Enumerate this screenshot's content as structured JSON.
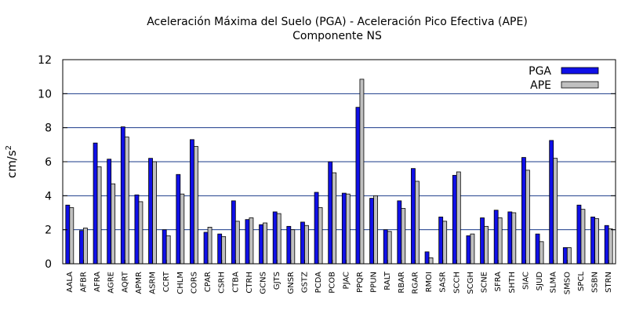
{
  "colors": {
    "pga": "#1010e8",
    "ape": "#c0c0c0",
    "grid": "#1a3a8a"
  },
  "chart_data": {
    "type": "bar",
    "title": "Aceleración Máxima del Suelo (PGA) -   Aceleración Pico Efectiva (APE)",
    "subtitle": "Componente NS",
    "ylabel": "cm/s",
    "ylabel_sup": "2",
    "xlabel": "",
    "ylim": [
      0,
      12
    ],
    "yticks": [
      0,
      2,
      4,
      6,
      8,
      10,
      12
    ],
    "grid": true,
    "legend_position": "top-right",
    "categories": [
      "AALA",
      "AFBR",
      "AFRA",
      "AGRE",
      "AQRT",
      "APMR",
      "ASRM",
      "CCRT",
      "CHLM",
      "CORS",
      "CPAR",
      "CSRH",
      "CTBA",
      "CTRH",
      "GCNS",
      "GJTS",
      "GNSR",
      "GSTZ",
      "PCDA",
      "PCOB",
      "PJAC",
      "PPQR",
      "PPUN",
      "RALT",
      "RBAR",
      "RGAR",
      "RMOI",
      "SASR",
      "SCCH",
      "SCGH",
      "SCNE",
      "SFRA",
      "SHTH",
      "SIAC",
      "SJUD",
      "SLMA",
      "SMSO",
      "SPCL",
      "SSBN",
      "STRN"
    ],
    "series": [
      {
        "name": "PGA",
        "values": [
          3.45,
          1.95,
          7.1,
          6.15,
          8.05,
          4.05,
          6.2,
          2.0,
          5.25,
          7.3,
          1.85,
          1.75,
          3.7,
          2.6,
          2.3,
          3.05,
          2.2,
          2.45,
          4.2,
          6.0,
          4.15,
          9.2,
          3.85,
          2.0,
          3.7,
          5.6,
          0.7,
          2.75,
          5.2,
          1.65,
          2.7,
          3.15,
          3.05,
          6.25,
          1.75,
          7.25,
          0.95,
          3.45,
          2.75,
          2.25
        ]
      },
      {
        "name": "APE",
        "values": [
          3.3,
          2.1,
          5.7,
          4.7,
          7.45,
          3.65,
          6.0,
          1.65,
          4.1,
          6.9,
          2.15,
          1.6,
          2.5,
          2.7,
          2.4,
          2.95,
          2.0,
          2.25,
          3.3,
          5.35,
          4.1,
          10.85,
          4.0,
          1.9,
          3.25,
          4.85,
          0.35,
          2.5,
          5.4,
          1.75,
          2.2,
          2.7,
          3.0,
          5.5,
          1.3,
          6.2,
          0.95,
          3.2,
          2.65,
          2.05
        ]
      }
    ]
  }
}
